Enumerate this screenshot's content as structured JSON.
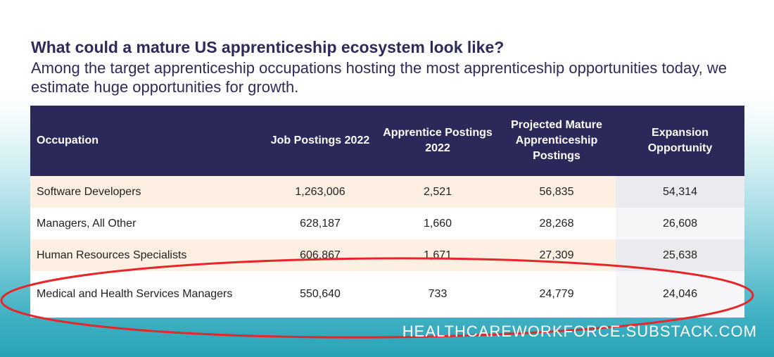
{
  "heading": {
    "title": "What could a mature US apprenticeship ecosystem look like?",
    "subtitle": "Among the target apprenticeship occupations hosting the most apprenticeship opportunities today, we estimate huge opportunities for growth."
  },
  "table": {
    "columns": [
      "Occupation",
      "Job Postings 2022",
      "Apprentice Postings 2022",
      "Projected Mature Apprenticeship Postings",
      "Expansion Opportunity"
    ],
    "rows": [
      {
        "occupation": "Software Developers",
        "job_postings": "1,263,006",
        "apprentice_postings": "2,521",
        "projected": "56,835",
        "expansion": "54,314"
      },
      {
        "occupation": "Managers, All Other",
        "job_postings": "628,187",
        "apprentice_postings": "1,660",
        "projected": "28,268",
        "expansion": "26,608"
      },
      {
        "occupation": "Human Resources Specialists",
        "job_postings": "606,867",
        "apprentice_postings": "1,671",
        "projected": "27,309",
        "expansion": "25,638"
      },
      {
        "occupation": "Medical and Health Services Managers",
        "job_postings": "550,640",
        "apprentice_postings": "733",
        "projected": "24,779",
        "expansion": "24,046"
      }
    ]
  },
  "annotation": {
    "type": "ellipse",
    "color": "#e8262a"
  },
  "watermark": "HEALTHCAREWORKFORCE.SUBSTACK.COM",
  "colors": {
    "header_bg": "#2b285a",
    "title": "#2d2a5c",
    "row_peach": "#fdf0e2",
    "accent_red": "#e8262a",
    "teal": "#2aa2b6"
  }
}
